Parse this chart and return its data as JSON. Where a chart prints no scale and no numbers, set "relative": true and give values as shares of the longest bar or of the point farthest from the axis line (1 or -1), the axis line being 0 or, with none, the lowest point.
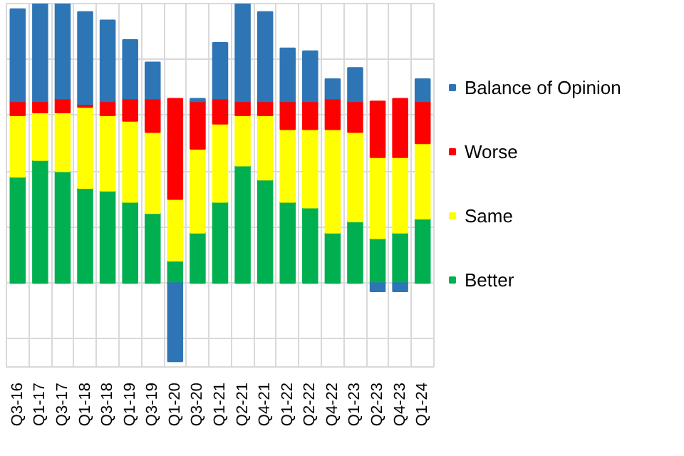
{
  "chart_data": {
    "type": "bar",
    "stacked": true,
    "relative": true,
    "grid": true,
    "legend": "right",
    "categories": [
      "Q3-16",
      "Q1-17",
      "Q3-17",
      "Q1-18",
      "Q3-18",
      "Q1-19",
      "Q3-19",
      "Q1-20",
      "Q3-20",
      "Q1-21",
      "Q2-21",
      "Q4-21",
      "Q1-22",
      "Q2-22",
      "Q4-22",
      "Q1-23",
      "Q2-23",
      "Q4-23",
      "Q1-24"
    ],
    "series": [
      {
        "name": "Better",
        "color": "#00b050",
        "values": [
          0.38,
          0.44,
          0.4,
          0.34,
          0.33,
          0.29,
          0.25,
          0.08,
          0.18,
          0.29,
          0.42,
          0.37,
          0.29,
          0.27,
          0.18,
          0.22,
          0.16,
          0.18,
          0.23
        ]
      },
      {
        "name": "Same",
        "color": "#ffff00",
        "values": [
          0.22,
          0.17,
          0.21,
          0.29,
          0.27,
          0.29,
          0.29,
          0.22,
          0.3,
          0.28,
          0.18,
          0.23,
          0.26,
          0.28,
          0.37,
          0.32,
          0.29,
          0.27,
          0.27
        ]
      },
      {
        "name": "Worse",
        "color": "#ff0000",
        "values": [
          0.05,
          0.04,
          0.05,
          0.01,
          0.05,
          0.08,
          0.12,
          0.36,
          0.17,
          0.09,
          0.05,
          0.05,
          0.1,
          0.1,
          0.11,
          0.11,
          0.2,
          0.21,
          0.15
        ]
      },
      {
        "name": "Balance of Opinion",
        "color": "#2e75b6",
        "values": [
          0.33,
          0.35,
          0.34,
          0.33,
          0.29,
          0.21,
          0.13,
          -0.28,
          0.01,
          0.2,
          0.35,
          0.32,
          0.19,
          0.18,
          0.07,
          0.12,
          -0.03,
          -0.03,
          0.08
        ]
      }
    ]
  }
}
